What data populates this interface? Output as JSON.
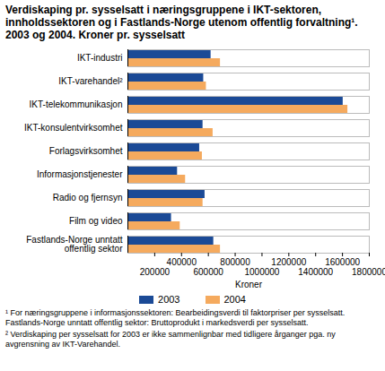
{
  "chart_data": {
    "type": "bar",
    "orientation": "horizontal",
    "title": "Verdiskaping pr. sysselsatt i næringsgruppene i IKT-sektoren, innholdssektoren og i Fastlands-Norge utenom offentlig forvaltning¹. 2003 og 2004. Kroner pr. sysselsatt",
    "x_label": "Kroner",
    "categories": [
      "IKT-industri",
      "IKT-varehandel²",
      "IKT-telekommunikasjon",
      "IKT-konsulentvirksomhet",
      "Forlagsvirksomhet",
      "Informasjonstjenester",
      "Radio og fjernsyn",
      "Film og video",
      "Fastlands-Norge unntatt offentlig sektor"
    ],
    "series": [
      {
        "name": "2003",
        "color": "#1b4a96",
        "values": [
          620000,
          565000,
          1605000,
          560000,
          535000,
          370000,
          575000,
          325000,
          640000
        ]
      },
      {
        "name": "2004",
        "color": "#f5aa5e",
        "values": [
          690000,
          585000,
          1640000,
          635000,
          555000,
          430000,
          560000,
          390000,
          690000
        ]
      }
    ],
    "xlim": [
      0,
      1800000
    ],
    "xticks": [
      200000,
      400000,
      600000,
      800000,
      1000000,
      1200000,
      1400000,
      1600000,
      1800000
    ],
    "grid": false,
    "legend": "bottom",
    "data_labels": false,
    "notes": [
      "¹ For næringsgruppene i informasjonssektoren: Bearbeidingsverdi til faktorpriser per sysselsatt. Fastlands-Norge unntatt offentlig sektor: Bruttoprodukt i markedsverdi per sysselsatt.",
      "² Verdiskaping per sysselsatt for 2003 er ikke sammenlignbar med tidligere årganger pga. ny avgrensning av IKT-Varehandel."
    ]
  }
}
